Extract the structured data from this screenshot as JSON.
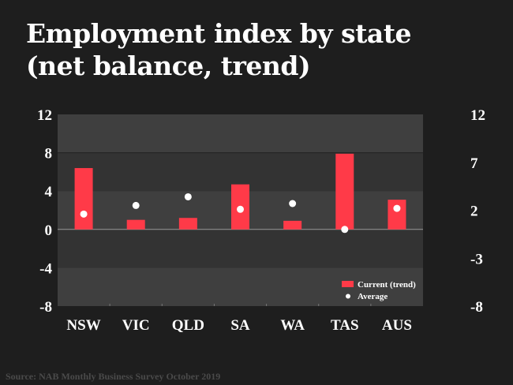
{
  "chart_data": {
    "type": "bar",
    "title": "Employment index by state",
    "subtitle": "(net balance, trend)",
    "categories": [
      "NSW",
      "VIC",
      "QLD",
      "SA",
      "WA",
      "TAS",
      "AUS"
    ],
    "series": [
      {
        "name": "Current (trend)",
        "kind": "bar",
        "color": "#ff3a48",
        "values": [
          6.4,
          1.0,
          1.2,
          4.7,
          0.9,
          7.9,
          3.1
        ]
      },
      {
        "name": "Average",
        "kind": "dot",
        "color": "#ffffff",
        "values": [
          1.6,
          2.5,
          3.4,
          2.1,
          2.7,
          0.0,
          2.2
        ]
      }
    ],
    "ylim": [
      -8,
      12
    ],
    "left_ticks": [
      "12",
      "8",
      "4",
      "0",
      "-4",
      "-8"
    ],
    "right_ticks": [
      "12",
      "7",
      "2",
      "-3",
      "-8"
    ],
    "legend_position": "bottom-right",
    "xlabel": "",
    "ylabel": ""
  },
  "source": "Source: NAB Monthly Business Survey October 2019"
}
